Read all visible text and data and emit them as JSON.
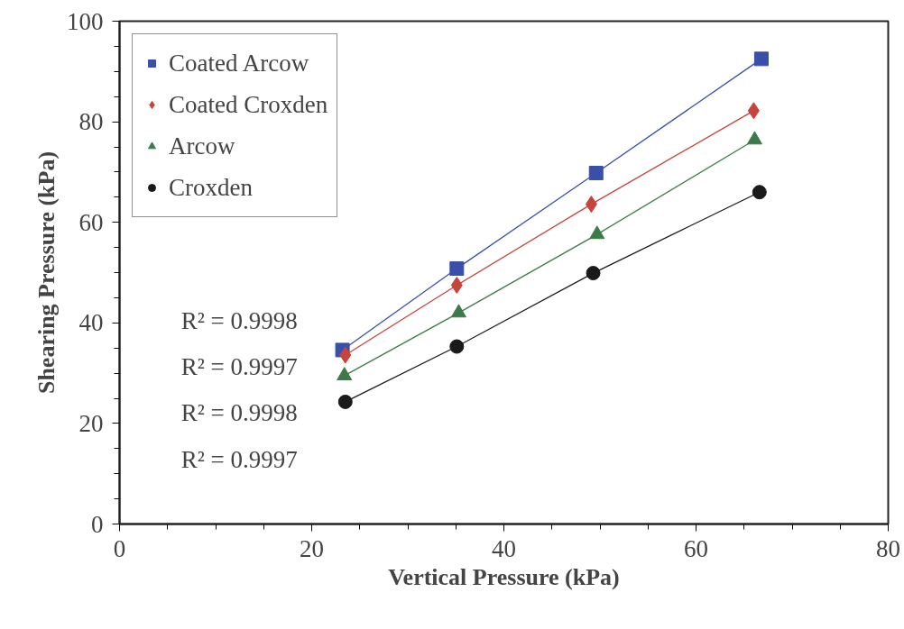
{
  "chart_data": {
    "type": "line",
    "xlabel": "Vertical Pressure (kPa)",
    "ylabel": "Shearing Pressure (kPa)",
    "xlim": [
      0,
      80
    ],
    "xticks": [
      0,
      20,
      40,
      60,
      80
    ],
    "ylim": [
      0,
      100
    ],
    "yticks": [
      0,
      20,
      40,
      60,
      80,
      100
    ],
    "grid": false,
    "legend": "top left",
    "line_style": "solid",
    "series": [
      {
        "name": "Coated Arcow",
        "color": "#3a4fa8",
        "marker": "square",
        "x": [
          23.2,
          35.1,
          49.6,
          66.8
        ],
        "values": [
          34.6,
          50.8,
          69.8,
          92.5
        ]
      },
      {
        "name": "Coated Croxden",
        "color": "#c8443a",
        "marker": "diamond",
        "x": [
          23.5,
          35.1,
          49.1,
          66.0
        ],
        "values": [
          33.6,
          47.5,
          63.6,
          82.2
        ]
      },
      {
        "name": "Arcow",
        "color": "#3d7a4a",
        "marker": "triangle",
        "x": [
          23.4,
          35.3,
          49.7,
          66.1
        ],
        "values": [
          29.5,
          42.0,
          57.6,
          76.4
        ]
      },
      {
        "name": "Croxden",
        "color": "#1a1a1a",
        "marker": "circle",
        "x": [
          23.5,
          35.1,
          49.3,
          66.6
        ],
        "values": [
          24.3,
          35.3,
          49.9,
          66.0
        ]
      }
    ],
    "annotations": [
      "R² = 0.9998",
      "R² = 0.9997",
      "R² = 0.9998",
      "R² = 0.9997"
    ]
  }
}
